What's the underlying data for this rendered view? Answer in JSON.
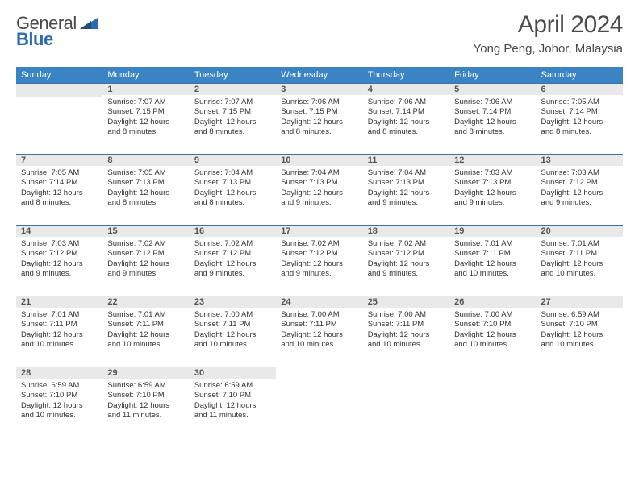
{
  "logo": {
    "text1": "General",
    "text2": "Blue"
  },
  "title": "April 2024",
  "location": "Yong Peng, Johor, Malaysia",
  "colors": {
    "header_bg": "#3b84c4",
    "header_text": "#ffffff",
    "rule": "#3b73a8",
    "numbar_bg": "#e9e9e9",
    "body_text": "#333333",
    "title_text": "#4a4a4a"
  },
  "day_headers": [
    "Sunday",
    "Monday",
    "Tuesday",
    "Wednesday",
    "Thursday",
    "Friday",
    "Saturday"
  ],
  "weeks": [
    [
      {
        "n": "",
        "lines": []
      },
      {
        "n": "1",
        "lines": [
          "Sunrise: 7:07 AM",
          "Sunset: 7:15 PM",
          "Daylight: 12 hours",
          "and 8 minutes."
        ]
      },
      {
        "n": "2",
        "lines": [
          "Sunrise: 7:07 AM",
          "Sunset: 7:15 PM",
          "Daylight: 12 hours",
          "and 8 minutes."
        ]
      },
      {
        "n": "3",
        "lines": [
          "Sunrise: 7:06 AM",
          "Sunset: 7:15 PM",
          "Daylight: 12 hours",
          "and 8 minutes."
        ]
      },
      {
        "n": "4",
        "lines": [
          "Sunrise: 7:06 AM",
          "Sunset: 7:14 PM",
          "Daylight: 12 hours",
          "and 8 minutes."
        ]
      },
      {
        "n": "5",
        "lines": [
          "Sunrise: 7:06 AM",
          "Sunset: 7:14 PM",
          "Daylight: 12 hours",
          "and 8 minutes."
        ]
      },
      {
        "n": "6",
        "lines": [
          "Sunrise: 7:05 AM",
          "Sunset: 7:14 PM",
          "Daylight: 12 hours",
          "and 8 minutes."
        ]
      }
    ],
    [
      {
        "n": "7",
        "lines": [
          "Sunrise: 7:05 AM",
          "Sunset: 7:14 PM",
          "Daylight: 12 hours",
          "and 8 minutes."
        ]
      },
      {
        "n": "8",
        "lines": [
          "Sunrise: 7:05 AM",
          "Sunset: 7:13 PM",
          "Daylight: 12 hours",
          "and 8 minutes."
        ]
      },
      {
        "n": "9",
        "lines": [
          "Sunrise: 7:04 AM",
          "Sunset: 7:13 PM",
          "Daylight: 12 hours",
          "and 8 minutes."
        ]
      },
      {
        "n": "10",
        "lines": [
          "Sunrise: 7:04 AM",
          "Sunset: 7:13 PM",
          "Daylight: 12 hours",
          "and 9 minutes."
        ]
      },
      {
        "n": "11",
        "lines": [
          "Sunrise: 7:04 AM",
          "Sunset: 7:13 PM",
          "Daylight: 12 hours",
          "and 9 minutes."
        ]
      },
      {
        "n": "12",
        "lines": [
          "Sunrise: 7:03 AM",
          "Sunset: 7:13 PM",
          "Daylight: 12 hours",
          "and 9 minutes."
        ]
      },
      {
        "n": "13",
        "lines": [
          "Sunrise: 7:03 AM",
          "Sunset: 7:12 PM",
          "Daylight: 12 hours",
          "and 9 minutes."
        ]
      }
    ],
    [
      {
        "n": "14",
        "lines": [
          "Sunrise: 7:03 AM",
          "Sunset: 7:12 PM",
          "Daylight: 12 hours",
          "and 9 minutes."
        ]
      },
      {
        "n": "15",
        "lines": [
          "Sunrise: 7:02 AM",
          "Sunset: 7:12 PM",
          "Daylight: 12 hours",
          "and 9 minutes."
        ]
      },
      {
        "n": "16",
        "lines": [
          "Sunrise: 7:02 AM",
          "Sunset: 7:12 PM",
          "Daylight: 12 hours",
          "and 9 minutes."
        ]
      },
      {
        "n": "17",
        "lines": [
          "Sunrise: 7:02 AM",
          "Sunset: 7:12 PM",
          "Daylight: 12 hours",
          "and 9 minutes."
        ]
      },
      {
        "n": "18",
        "lines": [
          "Sunrise: 7:02 AM",
          "Sunset: 7:12 PM",
          "Daylight: 12 hours",
          "and 9 minutes."
        ]
      },
      {
        "n": "19",
        "lines": [
          "Sunrise: 7:01 AM",
          "Sunset: 7:11 PM",
          "Daylight: 12 hours",
          "and 10 minutes."
        ]
      },
      {
        "n": "20",
        "lines": [
          "Sunrise: 7:01 AM",
          "Sunset: 7:11 PM",
          "Daylight: 12 hours",
          "and 10 minutes."
        ]
      }
    ],
    [
      {
        "n": "21",
        "lines": [
          "Sunrise: 7:01 AM",
          "Sunset: 7:11 PM",
          "Daylight: 12 hours",
          "and 10 minutes."
        ]
      },
      {
        "n": "22",
        "lines": [
          "Sunrise: 7:01 AM",
          "Sunset: 7:11 PM",
          "Daylight: 12 hours",
          "and 10 minutes."
        ]
      },
      {
        "n": "23",
        "lines": [
          "Sunrise: 7:00 AM",
          "Sunset: 7:11 PM",
          "Daylight: 12 hours",
          "and 10 minutes."
        ]
      },
      {
        "n": "24",
        "lines": [
          "Sunrise: 7:00 AM",
          "Sunset: 7:11 PM",
          "Daylight: 12 hours",
          "and 10 minutes."
        ]
      },
      {
        "n": "25",
        "lines": [
          "Sunrise: 7:00 AM",
          "Sunset: 7:11 PM",
          "Daylight: 12 hours",
          "and 10 minutes."
        ]
      },
      {
        "n": "26",
        "lines": [
          "Sunrise: 7:00 AM",
          "Sunset: 7:10 PM",
          "Daylight: 12 hours",
          "and 10 minutes."
        ]
      },
      {
        "n": "27",
        "lines": [
          "Sunrise: 6:59 AM",
          "Sunset: 7:10 PM",
          "Daylight: 12 hours",
          "and 10 minutes."
        ]
      }
    ],
    [
      {
        "n": "28",
        "lines": [
          "Sunrise: 6:59 AM",
          "Sunset: 7:10 PM",
          "Daylight: 12 hours",
          "and 10 minutes."
        ]
      },
      {
        "n": "29",
        "lines": [
          "Sunrise: 6:59 AM",
          "Sunset: 7:10 PM",
          "Daylight: 12 hours",
          "and 11 minutes."
        ]
      },
      {
        "n": "30",
        "lines": [
          "Sunrise: 6:59 AM",
          "Sunset: 7:10 PM",
          "Daylight: 12 hours",
          "and 11 minutes."
        ]
      },
      {
        "n": "",
        "lines": []
      },
      {
        "n": "",
        "lines": []
      },
      {
        "n": "",
        "lines": []
      },
      {
        "n": "",
        "lines": []
      }
    ]
  ]
}
